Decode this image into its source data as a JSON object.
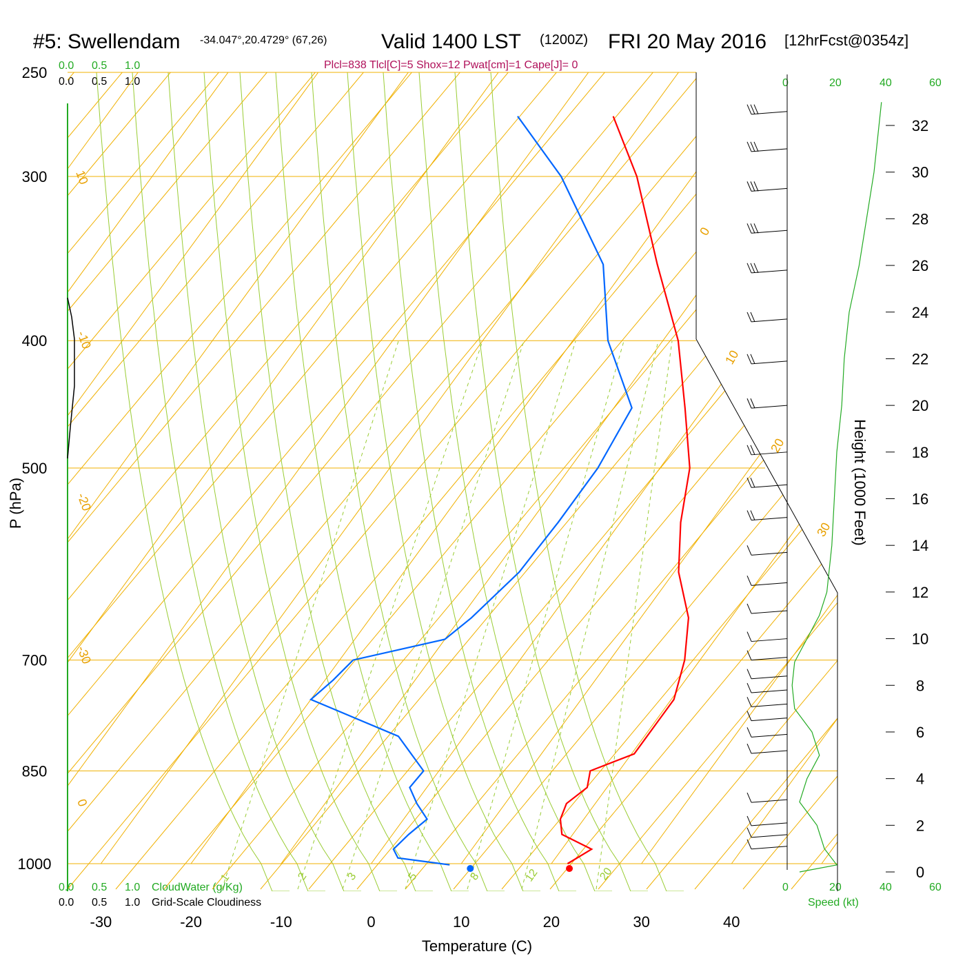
{
  "title": {
    "station": "#5: Swellendam",
    "coords": "-34.047°,20.4729° (67,26)",
    "valid_prefix": "Valid 1400 LST",
    "zulu": "(1200Z)",
    "date": "FRI 20 May 2016",
    "forecast": "[12hrFcst@0354z]"
  },
  "stats_line": "Plcl=838 Tlcl[C]=5 Shox=12 Pwat[cm]=1 Cape[J]= 0",
  "cloud_scales": {
    "green_ticks": [
      "0.0",
      "0.5",
      "1.0"
    ],
    "black_ticks": [
      "0.0",
      "0.5",
      "1.0"
    ],
    "cloudwater_label": "CloudWater (g/Kg)",
    "cloudiness_label": "Grid-Scale Cloudiness"
  },
  "wind_speed": {
    "ticks": [
      "0",
      "20",
      "40",
      "60"
    ],
    "label": "Speed (kt)"
  },
  "colors": {
    "temperature": "#ff0000",
    "dewpoint": "#0066ff",
    "isotherm": "#f0b000",
    "mixing_ratio": "#99cc33",
    "wind_speed": "#22aa22",
    "stats": "#b0105a"
  },
  "chart_data": {
    "type": "line",
    "subtype": "skew-T log-p sounding",
    "xlabel": "Temperature (C)",
    "ylabel": "P (hPa)",
    "y2label": "Height (1000 Feet)",
    "x_ticks": [
      -30,
      -20,
      -10,
      0,
      10,
      20,
      30,
      40
    ],
    "y_ticks": [
      250,
      300,
      400,
      500,
      700,
      850,
      1000
    ],
    "height_ticks": [
      0,
      2,
      4,
      6,
      8,
      10,
      12,
      14,
      16,
      18,
      20,
      22,
      24,
      26,
      28,
      30,
      32
    ],
    "isotherm_labels": [
      "10",
      "0",
      "-10",
      "-20",
      "-30",
      "0",
      "10",
      "20",
      "30"
    ],
    "mixing_ratio_labels": [
      "1",
      "2",
      "3",
      "5",
      "8",
      "12",
      "20"
    ],
    "surface_temperature": 22,
    "surface_dewpoint": 11,
    "series": [
      {
        "color": "red",
        "points": [
          [
            1000,
            21.8
          ],
          [
            975,
            23.3
          ],
          [
            950,
            18.8
          ],
          [
            925,
            17.4
          ],
          [
            900,
            16.8
          ],
          [
            875,
            17.8
          ],
          [
            850,
            16.8
          ],
          [
            825,
            20.3
          ],
          [
            800,
            20.3
          ],
          [
            775,
            20.3
          ],
          [
            750,
            20.3
          ],
          [
            700,
            18.3
          ],
          [
            650,
            15.3
          ],
          [
            600,
            10.5
          ],
          [
            550,
            6.7
          ],
          [
            500,
            3.3
          ],
          [
            450,
            -2.1
          ],
          [
            400,
            -8.3
          ],
          [
            350,
            -16.8
          ],
          [
            300,
            -26.2
          ],
          [
            270,
            -33.7
          ]
        ]
      },
      {
        "color": "blue",
        "points": [
          [
            1002,
            8.8
          ],
          [
            990,
            2.5
          ],
          [
            975,
            1.3
          ],
          [
            950,
            1.8
          ],
          [
            925,
            2.6
          ],
          [
            900,
            0.2
          ],
          [
            875,
            -1.9
          ],
          [
            850,
            -1.7
          ],
          [
            800,
            -7.3
          ],
          [
            750,
            -20.0
          ],
          [
            725,
            -19.1
          ],
          [
            700,
            -18.5
          ],
          [
            675,
            -10.0
          ],
          [
            650,
            -8.8
          ],
          [
            600,
            -7.2
          ],
          [
            550,
            -6.9
          ],
          [
            500,
            -6.9
          ],
          [
            450,
            -8.0
          ],
          [
            400,
            -16.1
          ],
          [
            350,
            -22.8
          ],
          [
            300,
            -34.6
          ],
          [
            270,
            -44.3
          ]
        ]
      }
    ],
    "wind_speed_profile_kt": [
      [
        0,
        5
      ],
      [
        0.3,
        20
      ],
      [
        1,
        15
      ],
      [
        2,
        12
      ],
      [
        3,
        5
      ],
      [
        4,
        8
      ],
      [
        5,
        13
      ],
      [
        6,
        10
      ],
      [
        7,
        3
      ],
      [
        8,
        2
      ],
      [
        9,
        3
      ],
      [
        10,
        8
      ],
      [
        11,
        13
      ],
      [
        12,
        16
      ],
      [
        13,
        17
      ],
      [
        14,
        18
      ],
      [
        16,
        19
      ],
      [
        18,
        20
      ],
      [
        20,
        22
      ],
      [
        22,
        23
      ],
      [
        24,
        25
      ],
      [
        26,
        29
      ],
      [
        28,
        32
      ],
      [
        30,
        35
      ],
      [
        32,
        37
      ],
      [
        33,
        38
      ]
    ],
    "cloudiness_profile": [
      [
        250,
        0
      ],
      [
        365,
        0
      ],
      [
        400,
        0.12
      ],
      [
        440,
        0.12
      ],
      [
        480,
        0
      ],
      [
        500,
        0
      ]
    ]
  }
}
